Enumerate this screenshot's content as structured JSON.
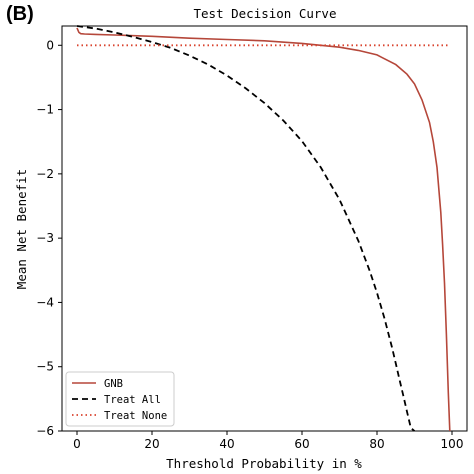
{
  "panel_label": "(B)",
  "chart_data": {
    "type": "line",
    "title": "Test Decision Curve",
    "xlabel": "Threshold Probability in %",
    "ylabel": "Mean Net Benefit",
    "xlim": [
      -4,
      104
    ],
    "ylim": [
      -6,
      0.3
    ],
    "xticks": [
      0,
      20,
      40,
      60,
      80,
      100
    ],
    "yticks": [
      0,
      -1,
      -2,
      -3,
      -4,
      -5,
      -6
    ],
    "xtick_labels": [
      "0",
      "20",
      "40",
      "60",
      "80",
      "100"
    ],
    "ytick_labels": [
      "0",
      "−1",
      "−2",
      "−3",
      "−4",
      "−5",
      "−6"
    ],
    "grid": false,
    "legend": {
      "position": "lower-left"
    },
    "series": [
      {
        "name": "GNB",
        "color": "#b5473a",
        "style": "solid",
        "x": [
          0,
          0.5,
          1,
          2,
          5,
          10,
          20,
          30,
          40,
          50,
          60,
          70,
          75,
          80,
          85,
          88,
          90,
          92,
          94,
          95,
          96,
          97,
          97.5,
          98,
          98.5,
          99,
          99.4
        ],
        "y": [
          0.27,
          0.2,
          0.18,
          0.175,
          0.17,
          0.16,
          0.14,
          0.11,
          0.09,
          0.07,
          0.03,
          -0.03,
          -0.08,
          -0.15,
          -0.3,
          -0.45,
          -0.6,
          -0.85,
          -1.2,
          -1.5,
          -1.9,
          -2.6,
          -3.1,
          -3.7,
          -4.5,
          -5.4,
          -6.0
        ]
      },
      {
        "name": "Treat All",
        "color": "#000000",
        "style": "dashed",
        "x": [
          0,
          5,
          10,
          15,
          20,
          25,
          30,
          35,
          40,
          45,
          50,
          55,
          60,
          65,
          70,
          75,
          78,
          80,
          82,
          84,
          85,
          86,
          87,
          88,
          89,
          90
        ],
        "y": [
          0.3,
          0.26,
          0.2,
          0.13,
          0.05,
          -0.04,
          -0.16,
          -0.3,
          -0.47,
          -0.67,
          -0.9,
          -1.17,
          -1.49,
          -1.9,
          -2.4,
          -3.04,
          -3.5,
          -3.85,
          -4.25,
          -4.7,
          -4.95,
          -5.2,
          -5.45,
          -5.7,
          -5.95,
          -6.0
        ]
      },
      {
        "name": "Treat None",
        "color": "#d9432e",
        "style": "dotted",
        "x": [
          0,
          99.5
        ],
        "y": [
          0,
          0
        ]
      }
    ]
  }
}
